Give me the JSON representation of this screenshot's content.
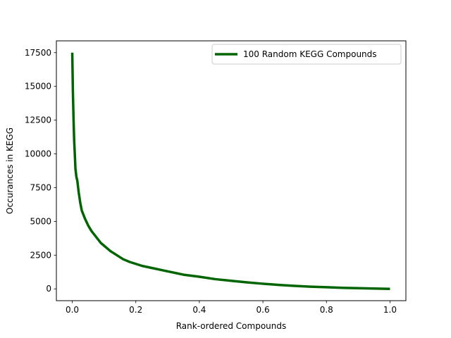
{
  "chart_data": {
    "type": "line",
    "title": "",
    "xlabel": "Rank-ordered Compounds",
    "ylabel": "Occurances in KEGG",
    "xlim": [
      -0.05,
      1.05
    ],
    "ylim": [
      -875,
      18375
    ],
    "xticks": [
      0.0,
      0.2,
      0.4,
      0.6,
      0.8,
      1.0
    ],
    "xtick_labels": [
      "0.0",
      "0.2",
      "0.4",
      "0.6",
      "0.8",
      "1.0"
    ],
    "yticks": [
      0,
      2500,
      5000,
      7500,
      10000,
      12500,
      15000,
      17500
    ],
    "ytick_labels": [
      "0",
      "2500",
      "5000",
      "7500",
      "10000",
      "12500",
      "15000",
      "17500"
    ],
    "grid": false,
    "legend_position": "top-right",
    "series": [
      {
        "name": "100 Random KEGG Compounds",
        "color": "#006400",
        "x": [
          0.0,
          0.002,
          0.004,
          0.006,
          0.008,
          0.01,
          0.013,
          0.016,
          0.02,
          0.025,
          0.03,
          0.035,
          0.04,
          0.05,
          0.06,
          0.07,
          0.08,
          0.09,
          0.1,
          0.12,
          0.14,
          0.16,
          0.18,
          0.2,
          0.22,
          0.25,
          0.3,
          0.35,
          0.4,
          0.45,
          0.5,
          0.55,
          0.6,
          0.65,
          0.7,
          0.75,
          0.8,
          0.85,
          0.9,
          0.95,
          1.0
        ],
        "y": [
          17500,
          14600,
          12600,
          11000,
          10000,
          8900,
          8300,
          8000,
          7200,
          6400,
          5800,
          5500,
          5200,
          4700,
          4300,
          4000,
          3700,
          3400,
          3200,
          2800,
          2500,
          2200,
          2000,
          1850,
          1700,
          1550,
          1300,
          1050,
          900,
          720,
          600,
          480,
          380,
          290,
          220,
          160,
          120,
          80,
          50,
          25,
          0
        ]
      }
    ]
  }
}
